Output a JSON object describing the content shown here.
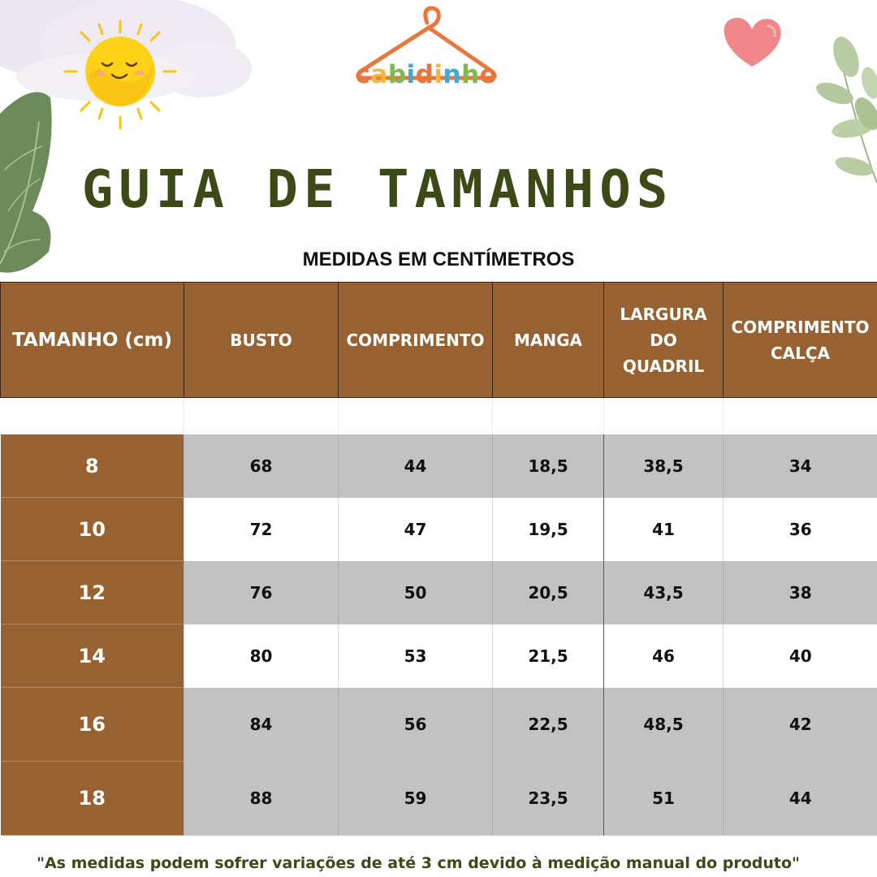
{
  "brand": {
    "letters": [
      {
        "char": "c",
        "color": "#e9763a"
      },
      {
        "char": "a",
        "color": "#f4b73a"
      },
      {
        "char": "b",
        "color": "#7dba4b"
      },
      {
        "char": "i",
        "color": "#3fa9d8"
      },
      {
        "char": "d",
        "color": "#e9763a"
      },
      {
        "char": "i",
        "color": "#f4b73a"
      },
      {
        "char": "n",
        "color": "#3fa9d8"
      },
      {
        "char": "h",
        "color": "#7dba4b"
      },
      {
        "char": "o",
        "color": "#e9763a"
      }
    ],
    "hanger_color": "#e9763a"
  },
  "title": "GUIA DE TAMANHOS",
  "subtitle": "MEDIDAS EM CENTÍMETROS",
  "table": {
    "headers": [
      {
        "key": "size",
        "lines": [
          "TAMANHO (cm)"
        ]
      },
      {
        "key": "busto",
        "lines": [
          "BUSTO"
        ]
      },
      {
        "key": "comprimento",
        "lines": [
          "COMPRIMENTO"
        ]
      },
      {
        "key": "manga",
        "lines": [
          "MANGA"
        ]
      },
      {
        "key": "quadril",
        "lines": [
          "LARGURA",
          "DO",
          "QUADRIL"
        ]
      },
      {
        "key": "calca",
        "lines": [
          "COMPRIMENTO",
          "CALÇA"
        ]
      }
    ],
    "rows": [
      {
        "size": "8",
        "values": [
          "68",
          "44",
          "18,5",
          "38,5",
          "34"
        ],
        "shade": "grey"
      },
      {
        "size": "10",
        "values": [
          "72",
          "47",
          "19,5",
          "41",
          "36"
        ],
        "shade": "white"
      },
      {
        "size": "12",
        "values": [
          "76",
          "50",
          "20,5",
          "43,5",
          "38"
        ],
        "shade": "grey"
      },
      {
        "size": "14",
        "values": [
          "80",
          "53",
          "21,5",
          "46",
          "40"
        ],
        "shade": "white"
      },
      {
        "size": "16",
        "values": [
          "84",
          "56",
          "22,5",
          "48,5",
          "42"
        ],
        "shade": "grey"
      },
      {
        "size": "18",
        "values": [
          "88",
          "59",
          "23,5",
          "51",
          "44"
        ],
        "shade": "grey"
      }
    ]
  },
  "footer_note": "\"As medidas podem sofrer variações de até 3 cm devido à medição manual do produto\"",
  "colors": {
    "header_brown": "#976132",
    "title_green": "#3b4a17",
    "row_grey": "#c2c2c2"
  },
  "decorations": [
    "cloud",
    "sun-face-icon",
    "leaf-left",
    "heart-icon",
    "leaf-right"
  ]
}
